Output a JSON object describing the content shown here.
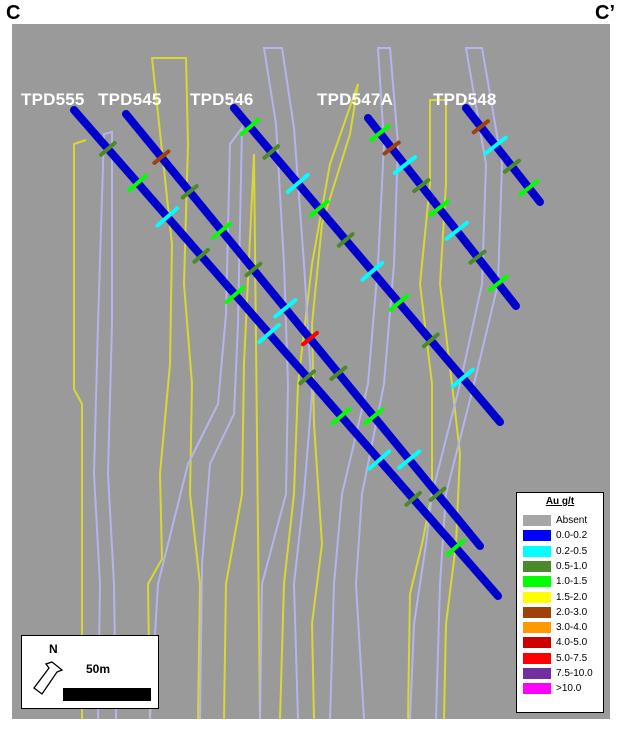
{
  "section": {
    "start_label": "C",
    "end_label": "C’"
  },
  "drill_holes": [
    {
      "id": "TPD555"
    },
    {
      "id": "TPD545"
    },
    {
      "id": "TPD546"
    },
    {
      "id": "TPD547A"
    },
    {
      "id": "TPD548"
    }
  ],
  "legend": {
    "title": "Au g/t",
    "items": [
      {
        "label": "Absent",
        "color": "#a6a6a6"
      },
      {
        "label": "0.0-0.2",
        "color": "#0000ff"
      },
      {
        "label": "0.2-0.5",
        "color": "#00ffff"
      },
      {
        "label": "0.5-1.0",
        "color": "#4a8a2a"
      },
      {
        "label": "1.0-1.5",
        "color": "#00ff00"
      },
      {
        "label": "1.5-2.0",
        "color": "#ffff00"
      },
      {
        "label": "2.0-3.0",
        "color": "#a0400a"
      },
      {
        "label": "3.0-4.0",
        "color": "#ff9900"
      },
      {
        "label": "4.0-5.0",
        "color": "#cc0000"
      },
      {
        "label": "5.0-7.5",
        "color": "#ff0000"
      },
      {
        "label": "7.5-10.0",
        "color": "#7030a0"
      },
      {
        "label": ">10.0",
        "color": "#ff00ff"
      }
    ]
  },
  "scale": {
    "north_label": "N",
    "scale_label": "50m"
  },
  "colors": {
    "background": "#9a9a9a",
    "trace_yellow": "#d8d830",
    "trace_lavender": "#b4b4ee",
    "hole_blue": "#0000cc",
    "label_text": "#ffffff"
  }
}
